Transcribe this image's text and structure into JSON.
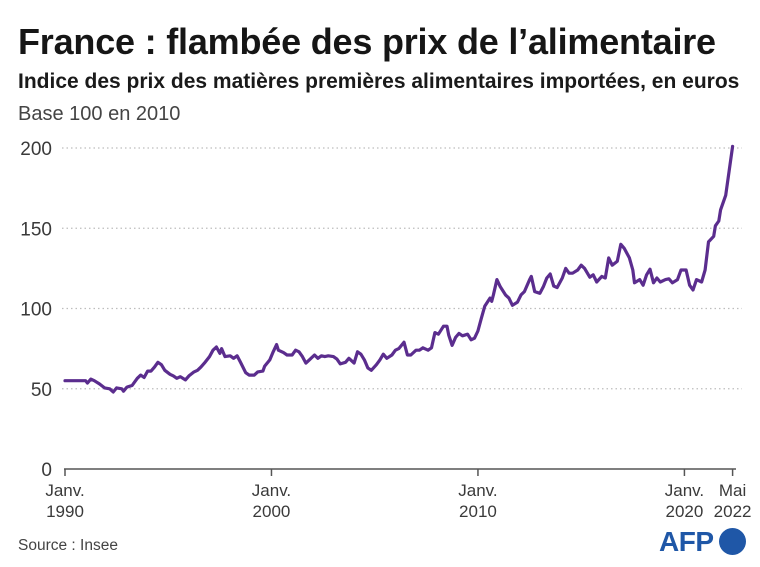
{
  "chart_data": {
    "type": "line",
    "title": "France : flambée des prix de l’alimentaire",
    "subtitle": "Indice des prix des matières premières alimentaires importées, en euros",
    "ylabel": "Base 100 en 2010",
    "xlabel": "",
    "ylim": [
      0,
      200
    ],
    "yticks": [
      0,
      50,
      100,
      150,
      200
    ],
    "xlim": [
      "1990-01",
      "2022-05"
    ],
    "xticks": [
      {
        "x": "1990-01",
        "label": [
          "Janv.",
          "1990"
        ]
      },
      {
        "x": "2000-01",
        "label": [
          "Janv.",
          "2000"
        ]
      },
      {
        "x": "2010-01",
        "label": [
          "Janv.",
          "2010"
        ]
      },
      {
        "x": "2020-01",
        "label": [
          "Janv.",
          "2020"
        ]
      },
      {
        "x": "2022-05",
        "label": [
          "Mai",
          "2022"
        ]
      }
    ],
    "grid": true,
    "x": [
      "1990-01",
      "1990-07",
      "1991-01",
      "1991-02",
      "1991-04",
      "1991-06",
      "1991-09",
      "1991-12",
      "1992-03",
      "1992-05",
      "1992-07",
      "1992-10",
      "1992-11",
      "1993-01",
      "1993-04",
      "1993-07",
      "1993-09",
      "1993-11",
      "1994-01",
      "1994-03",
      "1994-05",
      "1994-07",
      "1994-09",
      "1994-11",
      "1995-02",
      "1995-04",
      "1995-06",
      "1995-08",
      "1995-11",
      "1996-01",
      "1996-04",
      "1996-06",
      "1996-08",
      "1996-10",
      "1997-01",
      "1997-03",
      "1997-05",
      "1997-07",
      "1997-08",
      "1997-10",
      "1998-01",
      "1998-03",
      "1998-05",
      "1998-07",
      "1998-10",
      "1998-12",
      "1999-03",
      "1999-05",
      "1999-08",
      "1999-09",
      "1999-12",
      "2000-02",
      "2000-04",
      "2000-05",
      "2000-08",
      "2000-10",
      "2001-01",
      "2001-03",
      "2001-05",
      "2001-07",
      "2001-09",
      "2001-11",
      "2002-02",
      "2002-04",
      "2002-06",
      "2002-08",
      "2002-10",
      "2003-01",
      "2003-03",
      "2003-05",
      "2003-08",
      "2003-10",
      "2004-01",
      "2004-03",
      "2004-05",
      "2004-07",
      "2004-09",
      "2004-11",
      "2005-02",
      "2005-04",
      "2005-06",
      "2005-08",
      "2005-11",
      "2006-01",
      "2006-03",
      "2006-06",
      "2006-08",
      "2006-10",
      "2007-01",
      "2007-03",
      "2007-05",
      "2007-08",
      "2007-10",
      "2007-12",
      "2008-02",
      "2008-05",
      "2008-07",
      "2008-08",
      "2008-10",
      "2008-12",
      "2009-02",
      "2009-04",
      "2009-07",
      "2009-09",
      "2009-11",
      "2010-01",
      "2010-03",
      "2010-05",
      "2010-08",
      "2010-09",
      "2010-10",
      "2010-12",
      "2011-02",
      "2011-05",
      "2011-07",
      "2011-09",
      "2011-12",
      "2012-02",
      "2012-04",
      "2012-07",
      "2012-08",
      "2012-10",
      "2013-01",
      "2013-03",
      "2013-05",
      "2013-07",
      "2013-09",
      "2013-11",
      "2014-02",
      "2014-04",
      "2014-06",
      "2014-08",
      "2014-11",
      "2015-01",
      "2015-03",
      "2015-06",
      "2015-08",
      "2015-10",
      "2016-01",
      "2016-03",
      "2016-05",
      "2016-07",
      "2016-10",
      "2016-12",
      "2017-02",
      "2017-05",
      "2017-07",
      "2017-08",
      "2017-11",
      "2018-01",
      "2018-03",
      "2018-05",
      "2018-07",
      "2018-09",
      "2018-11",
      "2019-02",
      "2019-04",
      "2019-06",
      "2019-09",
      "2019-11",
      "2020-02",
      "2020-04",
      "2020-06",
      "2020-08",
      "2020-11",
      "2021-01",
      "2021-03",
      "2021-06",
      "2021-07",
      "2021-09",
      "2021-10",
      "2022-01",
      "2022-03",
      "2022-05"
    ],
    "series": [
      {
        "color": "#5b2d8e",
        "values": [
          55,
          55,
          55,
          53.5,
          56,
          55,
          53,
          50.5,
          50,
          48,
          50.5,
          50,
          48.5,
          51,
          52,
          56.5,
          58.5,
          57,
          61,
          61,
          63.5,
          66.5,
          65,
          61.5,
          59,
          58,
          56.5,
          57.5,
          55.5,
          58,
          60.5,
          61.5,
          63.5,
          66,
          70,
          74,
          76,
          72,
          75,
          70,
          70.5,
          69,
          70.5,
          66.5,
          60,
          58.5,
          58.5,
          60.5,
          61,
          64,
          68,
          73,
          77.5,
          74,
          72.5,
          71,
          71,
          74,
          73,
          70,
          66,
          68,
          71,
          69,
          70.5,
          70,
          70.5,
          70,
          68.5,
          65.5,
          66.5,
          69,
          66,
          73,
          71.5,
          68,
          63,
          61.5,
          65,
          68,
          71.5,
          69,
          71,
          74,
          75,
          79,
          71,
          71,
          74,
          74,
          75.5,
          74,
          75.5,
          85,
          84,
          89,
          89,
          83.5,
          77,
          82,
          84.5,
          83,
          84,
          80.5,
          81.5,
          86,
          94,
          101.5,
          106.5,
          104.5,
          108.5,
          118,
          113.5,
          108.5,
          106.5,
          102,
          104,
          108.5,
          110.5,
          118,
          120,
          110.5,
          109.5,
          113.5,
          119,
          121.5,
          114,
          113,
          119,
          125,
          122,
          122,
          124,
          127,
          125,
          119.5,
          121,
          116.5,
          120,
          119,
          131.5,
          127,
          129.5,
          140,
          137.5,
          131.5,
          124,
          116,
          118,
          114.5,
          121,
          124.5,
          116,
          119,
          116.5,
          118,
          118.5,
          116,
          118,
          124,
          124,
          114.5,
          111.5,
          118,
          116.5,
          124,
          141.5,
          145,
          151.5,
          154.5,
          161.5,
          170.5,
          186,
          201
        ]
      }
    ]
  },
  "footer": {
    "source": "Source : Insee",
    "logo": "AFP"
  },
  "colors": {
    "grid": "#bdbdbd",
    "axis": "#555555",
    "logo": "#1f57a7"
  }
}
